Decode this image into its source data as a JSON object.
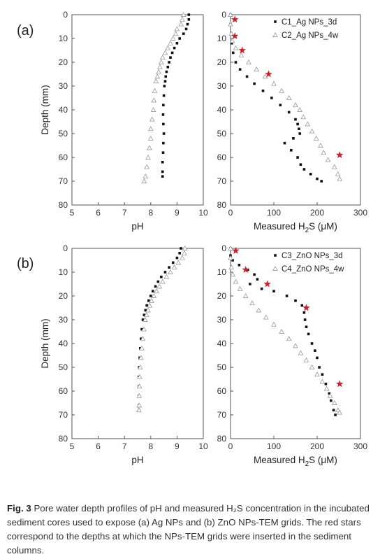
{
  "figure": {
    "caption_label": "Fig. 3",
    "caption_text": "Pore water depth profiles of pH and measured H₂S concentration in the incubated sediment cores used to expose (a) Ag NPs and (b) ZnO NPs-TEM grids. The red stars correspond to the depths at which the NPs-TEM grids were inserted in the sediment columns.",
    "colors": {
      "filled": "#111111",
      "open": "#9a9a9a",
      "star": "#c8232c",
      "axis": "#555555"
    }
  },
  "chart_data": [
    {
      "id": "a-pH",
      "panel": "(a)",
      "type": "scatter",
      "xlabel": "pH",
      "ylabel": "Depth (mm)",
      "xlim": [
        5,
        10
      ],
      "ylim": [
        80,
        0
      ],
      "y_inverted": true,
      "xticks": [
        5,
        6,
        7,
        8,
        9,
        10
      ],
      "yticks": [
        0,
        10,
        20,
        30,
        40,
        50,
        60,
        70,
        80
      ],
      "series": [
        {
          "style": "filled",
          "points": [
            [
              9.45,
              0
            ],
            [
              9.45,
              2
            ],
            [
              9.4,
              4
            ],
            [
              9.35,
              6
            ],
            [
              9.25,
              8
            ],
            [
              9.1,
              10
            ],
            [
              9.0,
              12
            ],
            [
              8.9,
              14
            ],
            [
              8.82,
              16
            ],
            [
              8.75,
              18
            ],
            [
              8.7,
              20
            ],
            [
              8.65,
              22
            ],
            [
              8.6,
              24
            ],
            [
              8.57,
              26
            ],
            [
              8.55,
              28
            ],
            [
              8.52,
              30
            ],
            [
              8.5,
              34
            ],
            [
              8.48,
              38
            ],
            [
              8.47,
              42
            ],
            [
              8.48,
              46
            ],
            [
              8.5,
              50
            ],
            [
              8.48,
              54
            ],
            [
              8.47,
              58
            ],
            [
              8.45,
              62
            ],
            [
              8.45,
              66
            ],
            [
              8.45,
              68
            ]
          ]
        },
        {
          "style": "open",
          "points": [
            [
              9.25,
              0
            ],
            [
              9.2,
              2
            ],
            [
              9.15,
              4
            ],
            [
              9.0,
              6
            ],
            [
              8.95,
              8
            ],
            [
              8.85,
              10
            ],
            [
              8.75,
              12
            ],
            [
              8.65,
              14
            ],
            [
              8.55,
              16
            ],
            [
              8.45,
              18
            ],
            [
              8.4,
              20
            ],
            [
              8.35,
              22
            ],
            [
              8.3,
              24
            ],
            [
              8.25,
              26
            ],
            [
              8.2,
              28
            ],
            [
              8.15,
              32
            ],
            [
              8.12,
              36
            ],
            [
              8.1,
              40
            ],
            [
              8.05,
              44
            ],
            [
              8.0,
              48
            ],
            [
              8.0,
              52
            ],
            [
              7.95,
              56
            ],
            [
              7.9,
              60
            ],
            [
              7.85,
              64
            ],
            [
              7.8,
              68
            ],
            [
              7.75,
              70
            ]
          ]
        }
      ]
    },
    {
      "id": "a-H2S",
      "panel": "(a)",
      "type": "scatter",
      "xlabel": "Measured H2S (μM)",
      "ylabel": "",
      "xlim": [
        0,
        300
      ],
      "ylim": [
        80,
        0
      ],
      "y_inverted": true,
      "xticks": [
        0,
        100,
        200,
        300
      ],
      "yticks": [
        0,
        10,
        20,
        30,
        40,
        50,
        60,
        70,
        80
      ],
      "legend": {
        "position": "top-right",
        "entries": [
          {
            "label": "C1_Ag NPs_3d",
            "style": "filled"
          },
          {
            "label": "C2_Ag NPs_4w",
            "style": "open"
          }
        ]
      },
      "series": [
        {
          "name": "C1_Ag NPs_3d",
          "style": "filled",
          "points": [
            [
              0,
              0
            ],
            [
              0,
              4
            ],
            [
              2,
              8
            ],
            [
              3,
              12
            ],
            [
              6,
              16
            ],
            [
              12,
              20
            ],
            [
              22,
              23
            ],
            [
              38,
              26
            ],
            [
              55,
              29
            ],
            [
              75,
              32
            ],
            [
              95,
              35
            ],
            [
              115,
              38
            ],
            [
              135,
              41
            ],
            [
              150,
              44
            ],
            [
              155,
              46
            ],
            [
              158,
              48
            ],
            [
              160,
              50
            ],
            [
              145,
              52
            ],
            [
              125,
              54
            ],
            [
              140,
              57
            ],
            [
              155,
              60
            ],
            [
              162,
              63
            ],
            [
              170,
              65
            ],
            [
              185,
              67
            ],
            [
              200,
              69
            ],
            [
              210,
              70
            ]
          ]
        },
        {
          "name": "C2_Ag NPs_4w",
          "style": "open",
          "points": [
            [
              0,
              0
            ],
            [
              0,
              4
            ],
            [
              2,
              8
            ],
            [
              4,
              11
            ],
            [
              12,
              14
            ],
            [
              25,
              17
            ],
            [
              42,
              20
            ],
            [
              60,
              23
            ],
            [
              80,
              26
            ],
            [
              100,
              29
            ],
            [
              118,
              32
            ],
            [
              135,
              35
            ],
            [
              150,
              38
            ],
            [
              160,
              40
            ],
            [
              168,
              43
            ],
            [
              178,
              46
            ],
            [
              188,
              49
            ],
            [
              198,
              52
            ],
            [
              208,
              55
            ],
            [
              215,
              58
            ],
            [
              225,
              61
            ],
            [
              240,
              64
            ],
            [
              248,
              67
            ],
            [
              252,
              69
            ]
          ]
        },
        {
          "name": "",
          "style": "star",
          "points": [
            [
              10,
              2
            ],
            [
              10,
              9
            ],
            [
              27,
              15
            ],
            [
              88,
              25
            ],
            [
              252,
              59
            ]
          ]
        }
      ]
    },
    {
      "id": "b-pH",
      "panel": "(b)",
      "type": "scatter",
      "xlabel": "pH",
      "ylabel": "Depth (mm)",
      "xlim": [
        5,
        10
      ],
      "ylim": [
        80,
        0
      ],
      "y_inverted": true,
      "xticks": [
        5,
        6,
        7,
        8,
        9,
        10
      ],
      "yticks": [
        0,
        10,
        20,
        30,
        40,
        50,
        60,
        70,
        80
      ],
      "series": [
        {
          "style": "filled",
          "points": [
            [
              9.15,
              0
            ],
            [
              9.1,
              2
            ],
            [
              9.0,
              4
            ],
            [
              8.85,
              6
            ],
            [
              8.7,
              8
            ],
            [
              8.55,
              10
            ],
            [
              8.4,
              12
            ],
            [
              8.28,
              14
            ],
            [
              8.18,
              16
            ],
            [
              8.08,
              18
            ],
            [
              8.0,
              20
            ],
            [
              7.92,
              22
            ],
            [
              7.85,
              24
            ],
            [
              7.8,
              26
            ],
            [
              7.75,
              28
            ],
            [
              7.7,
              30
            ],
            [
              7.66,
              34
            ],
            [
              7.63,
              38
            ],
            [
              7.6,
              42
            ],
            [
              7.58,
              46
            ],
            [
              7.56,
              50
            ],
            [
              7.55,
              54
            ],
            [
              7.55,
              58
            ],
            [
              7.55,
              62
            ],
            [
              7.55,
              66
            ],
            [
              7.55,
              68
            ]
          ]
        },
        {
          "style": "open",
          "points": [
            [
              9.3,
              0
            ],
            [
              9.28,
              2
            ],
            [
              9.2,
              4
            ],
            [
              9.05,
              6
            ],
            [
              8.9,
              8
            ],
            [
              8.75,
              10
            ],
            [
              8.6,
              12
            ],
            [
              8.45,
              14
            ],
            [
              8.33,
              16
            ],
            [
              8.22,
              18
            ],
            [
              8.12,
              20
            ],
            [
              8.03,
              22
            ],
            [
              7.96,
              24
            ],
            [
              7.9,
              26
            ],
            [
              7.84,
              28
            ],
            [
              7.79,
              30
            ],
            [
              7.74,
              34
            ],
            [
              7.7,
              38
            ],
            [
              7.66,
              42
            ],
            [
              7.63,
              46
            ],
            [
              7.6,
              50
            ],
            [
              7.58,
              54
            ],
            [
              7.57,
              58
            ],
            [
              7.56,
              62
            ],
            [
              7.56,
              66
            ],
            [
              7.55,
              68
            ]
          ]
        }
      ]
    },
    {
      "id": "b-H2S",
      "panel": "(b)",
      "type": "scatter",
      "xlabel": "Measured H2S (μM)",
      "ylabel": "",
      "xlim": [
        0,
        300
      ],
      "ylim": [
        80,
        0
      ],
      "y_inverted": true,
      "xticks": [
        0,
        100,
        200,
        300
      ],
      "yticks": [
        0,
        10,
        20,
        30,
        40,
        50,
        60,
        70,
        80
      ],
      "legend": {
        "position": "top-right",
        "entries": [
          {
            "label": "C3_ZnO NPs_3d",
            "style": "filled"
          },
          {
            "label": "C4_ZnO NPs_4w",
            "style": "open"
          }
        ]
      },
      "series": [
        {
          "name": "C3_ZnO NPs_3d",
          "style": "filled",
          "points": [
            [
              0,
              0
            ],
            [
              0,
              3
            ],
            [
              5,
              5
            ],
            [
              20,
              7
            ],
            [
              40,
              9
            ],
            [
              55,
              11
            ],
            [
              62,
              13
            ],
            [
              45,
              15
            ],
            [
              72,
              17
            ],
            [
              100,
              18
            ],
            [
              130,
              20
            ],
            [
              150,
              22
            ],
            [
              165,
              24
            ],
            [
              170,
              27
            ],
            [
              172,
              30
            ],
            [
              175,
              33
            ],
            [
              180,
              36
            ],
            [
              188,
              40
            ],
            [
              195,
              43
            ],
            [
              200,
              46
            ],
            [
              205,
              50
            ],
            [
              212,
              53
            ],
            [
              220,
              57
            ],
            [
              228,
              61
            ],
            [
              232,
              64
            ],
            [
              238,
              68
            ],
            [
              242,
              70
            ]
          ]
        },
        {
          "name": "C4_ZnO NPs_4w",
          "style": "open",
          "points": [
            [
              0,
              0
            ],
            [
              0,
              4
            ],
            [
              2,
              8
            ],
            [
              5,
              11
            ],
            [
              12,
              14
            ],
            [
              22,
              17
            ],
            [
              35,
              20
            ],
            [
              50,
              23
            ],
            [
              65,
              26
            ],
            [
              82,
              29
            ],
            [
              100,
              32
            ],
            [
              118,
              35
            ],
            [
              135,
              38
            ],
            [
              150,
              41
            ],
            [
              162,
              44
            ],
            [
              175,
              47
            ],
            [
              188,
              50
            ],
            [
              200,
              53
            ],
            [
              212,
              56
            ],
            [
              222,
              59
            ],
            [
              230,
              62
            ],
            [
              240,
              65
            ],
            [
              248,
              68
            ],
            [
              252,
              69
            ]
          ]
        },
        {
          "name": "",
          "style": "star",
          "points": [
            [
              12,
              1
            ],
            [
              35,
              9
            ],
            [
              85,
              15
            ],
            [
              175,
              25
            ],
            [
              252,
              57
            ]
          ]
        }
      ]
    }
  ]
}
